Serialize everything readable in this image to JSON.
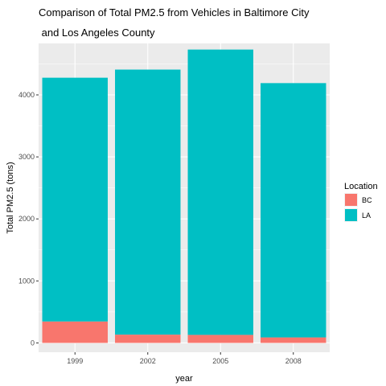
{
  "chart_data": {
    "type": "bar",
    "stacked": true,
    "title_lines": [
      "Comparison of Total PM2.5 from Vehicles in Baltimore City",
      " and Los Angeles County"
    ],
    "xlabel": "year",
    "ylabel": "Total PM2.5 (tons)",
    "categories": [
      "1999",
      "2002",
      "2005",
      "2008"
    ],
    "series": [
      {
        "name": "BC",
        "color": "#F8766D",
        "values": [
          346,
          134,
          130,
          89
        ]
      },
      {
        "name": "LA",
        "color": "#00BFC4",
        "values": [
          3931,
          4274,
          4601,
          4101
        ]
      }
    ],
    "ylim": [
      -150,
      4830
    ],
    "yticks": [
      0,
      1000,
      2000,
      3000,
      4000
    ],
    "grid": true,
    "legend": {
      "title": "Location",
      "placement": "right"
    },
    "panel_background": "#EBEBEB",
    "grid_color": "#FFFFFF"
  }
}
